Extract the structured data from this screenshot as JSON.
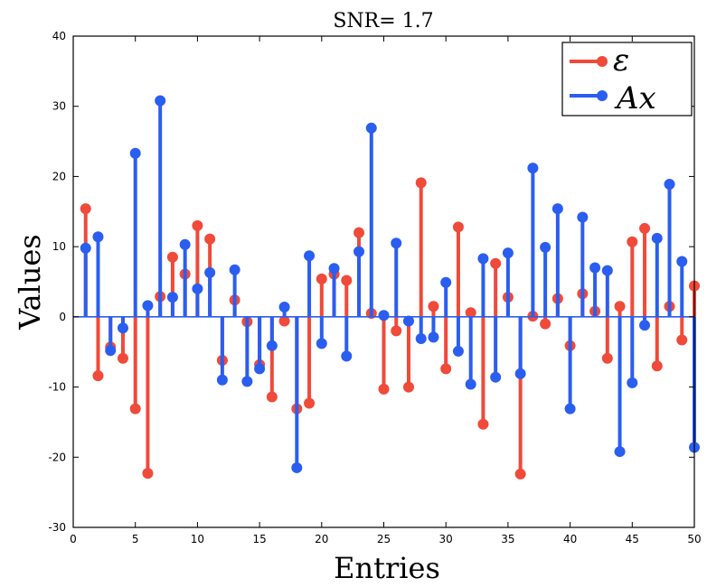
{
  "chart_data": {
    "type": "stem",
    "title": "SNR= 1.7",
    "xlabel": "Entries",
    "ylabel": "Values",
    "xlim": [
      0,
      50
    ],
    "ylim": [
      -30,
      40
    ],
    "xticks": [
      0,
      5,
      10,
      15,
      20,
      25,
      30,
      35,
      40,
      45,
      50
    ],
    "yticks": [
      -30,
      -20,
      -10,
      0,
      10,
      20,
      30,
      40
    ],
    "x_tick_labels": [
      "0",
      "5",
      "10",
      "15",
      "20",
      "25",
      "30",
      "35",
      "40",
      "45",
      "50"
    ],
    "y_tick_labels": [
      "-30",
      "-20",
      "-10",
      "0",
      "10",
      "20",
      "30",
      "40"
    ],
    "legend_position": "top-right",
    "x": [
      1,
      2,
      3,
      4,
      5,
      6,
      7,
      8,
      9,
      10,
      11,
      12,
      13,
      14,
      15,
      16,
      17,
      18,
      19,
      20,
      21,
      22,
      23,
      24,
      25,
      26,
      27,
      28,
      29,
      30,
      31,
      32,
      33,
      34,
      35,
      36,
      37,
      38,
      39,
      40,
      41,
      42,
      43,
      44,
      45,
      46,
      47,
      48,
      49,
      50
    ],
    "series": [
      {
        "name": "ε",
        "color": "#f04a3a",
        "values": [
          15.4,
          -8.4,
          -4.3,
          -5.9,
          -13.1,
          -22.3,
          2.9,
          8.5,
          6.1,
          13.0,
          11.1,
          -6.2,
          2.4,
          -0.7,
          -6.8,
          -11.4,
          -0.6,
          -13.1,
          -12.3,
          5.4,
          6.1,
          5.2,
          12.0,
          0.5,
          -10.3,
          -2.0,
          -10.0,
          19.1,
          1.5,
          -7.4,
          12.8,
          0.6,
          -15.3,
          7.6,
          2.8,
          -22.4,
          0.1,
          -1.0,
          2.6,
          -4.1,
          3.3,
          0.8,
          -5.9,
          1.5,
          10.7,
          12.6,
          -7.0,
          1.5,
          -3.3,
          4.4
        ]
      },
      {
        "name": "Ax",
        "color": "#2a5ef0",
        "values": [
          9.8,
          11.4,
          -4.8,
          -1.6,
          23.3,
          1.6,
          30.8,
          2.8,
          10.3,
          4.0,
          6.3,
          -9.0,
          6.7,
          -9.2,
          -7.4,
          -4.1,
          1.4,
          -21.5,
          8.7,
          -3.8,
          6.9,
          -5.6,
          9.3,
          26.9,
          0.2,
          10.5,
          -0.6,
          -3.1,
          -2.9,
          4.9,
          -4.9,
          -9.6,
          8.3,
          -8.6,
          9.1,
          -8.1,
          21.2,
          9.9,
          15.4,
          -13.1,
          14.2,
          7.0,
          6.6,
          -19.2,
          -9.4,
          -1.2,
          11.2,
          18.9,
          7.9,
          -18.6
        ]
      }
    ]
  }
}
